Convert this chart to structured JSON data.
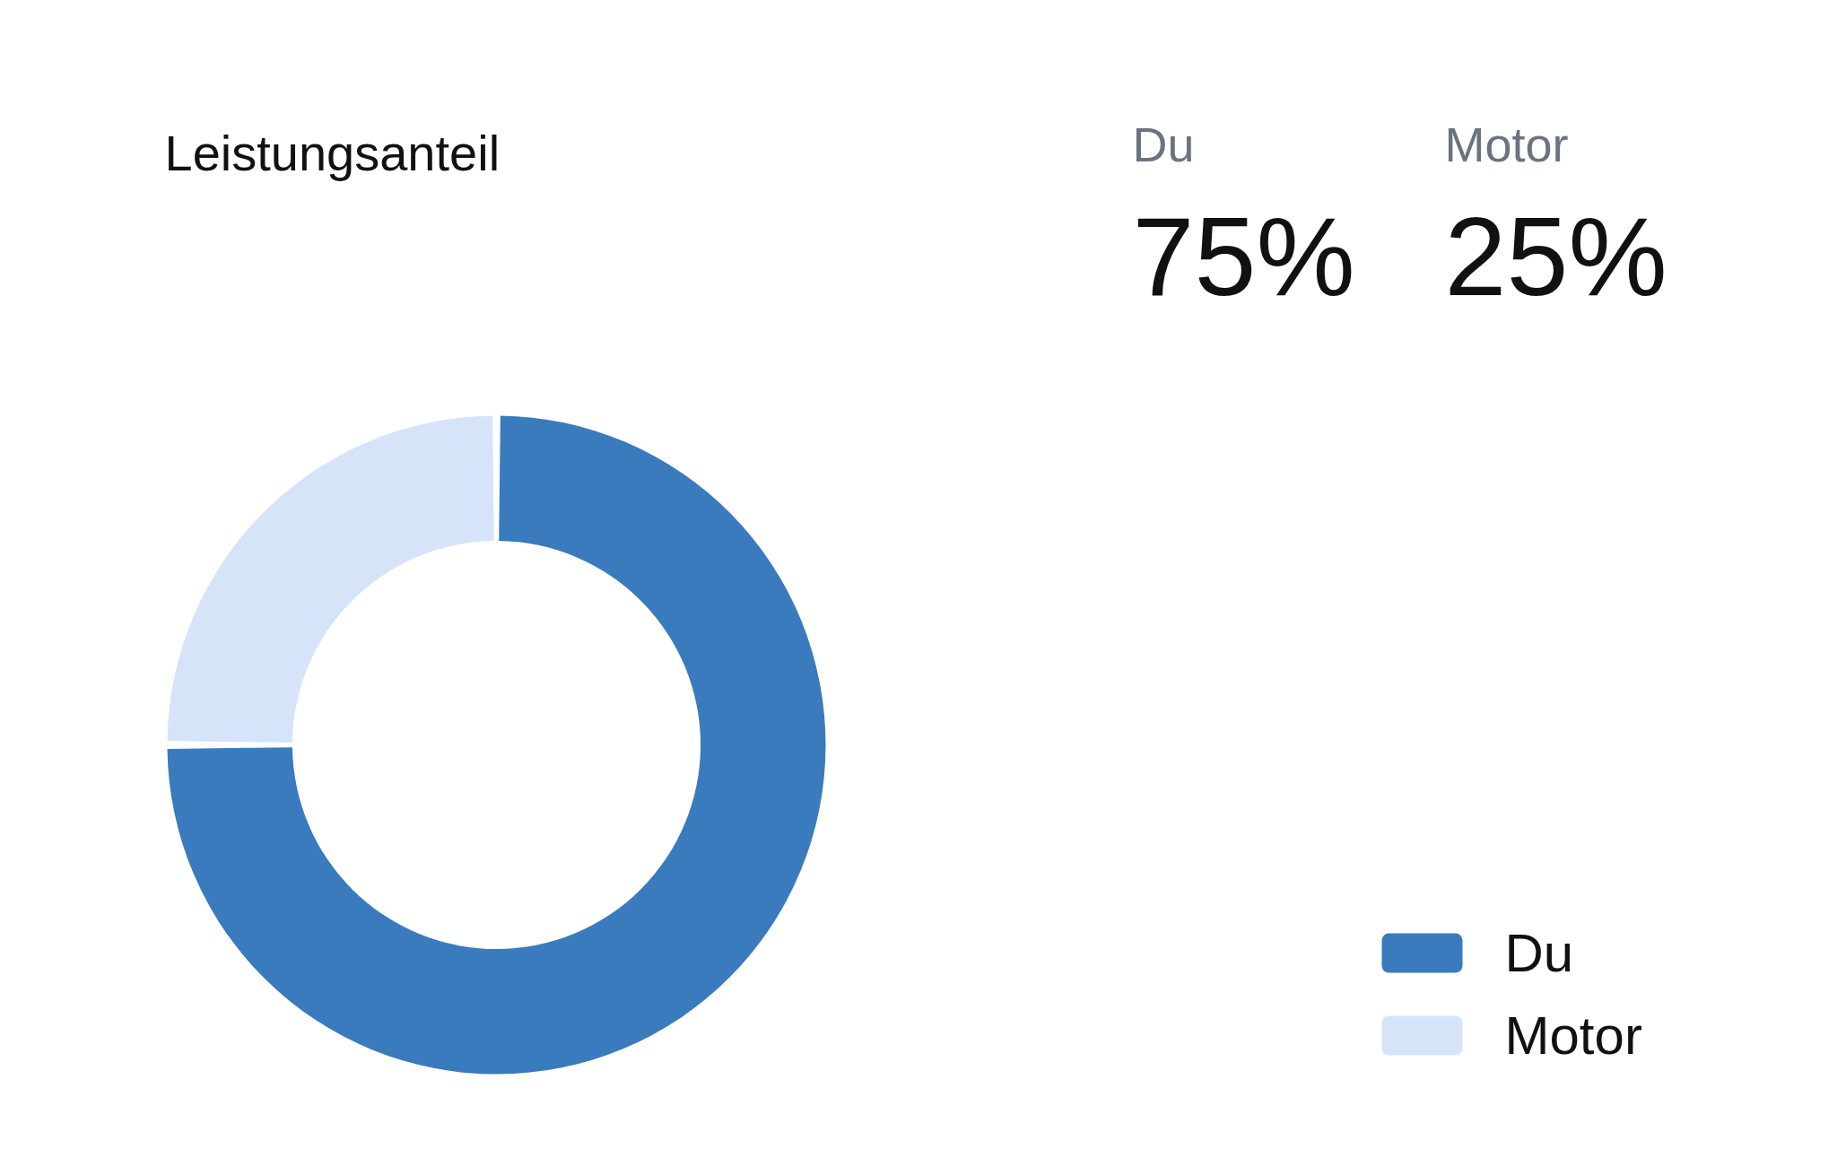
{
  "chart_data": {
    "type": "donut",
    "title": "Leistungsanteil",
    "categories": [
      "Du",
      "Motor"
    ],
    "values": [
      75,
      25
    ],
    "annotations": [
      "Du",
      "75%",
      "Motor",
      "25%"
    ],
    "colors": [
      "#3a7bbd",
      "#d6e4fa"
    ],
    "legend": "bottom right"
  }
}
